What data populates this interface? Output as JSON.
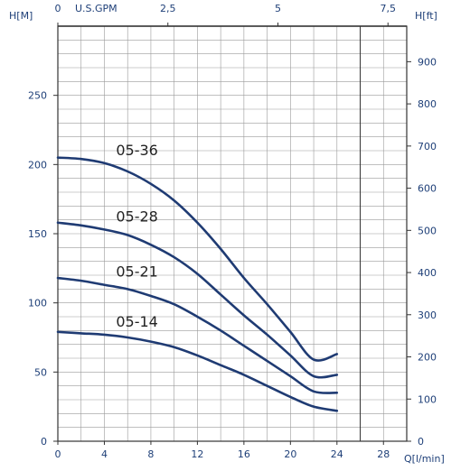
{
  "colors": {
    "curve": "#1f3b73",
    "grid": "#9a9a9a",
    "text": "#1e3f78",
    "frame": "#333333"
  },
  "chart_data": {
    "type": "line",
    "title": "",
    "xlabel": "Q[l/min]",
    "ylabel": "H[M]",
    "y2label": "H[ft]",
    "x2label": "U.S.GPM",
    "xlim": [
      0,
      30
    ],
    "ylim": [
      0,
      300
    ],
    "y2lim": [
      0,
      984.25
    ],
    "grid": true,
    "x_ticks": [
      "0",
      "4",
      "8",
      "12",
      "16",
      "20",
      "24",
      "28"
    ],
    "y_ticks": [
      "0",
      "50",
      "100",
      "150",
      "200",
      "250"
    ],
    "y2_ticks": [
      "0",
      "100",
      "200",
      "300",
      "400",
      "500",
      "600",
      "700",
      "800",
      "900"
    ],
    "x2_ticks": [
      "0",
      "2,5",
      "5",
      "7,5"
    ],
    "series": [
      {
        "name": "05-36",
        "x": [
          0,
          2,
          4,
          6,
          8,
          10,
          12,
          14,
          16,
          18,
          20,
          22,
          24
        ],
        "values": [
          205,
          204,
          201,
          195,
          186,
          174,
          158,
          139,
          118,
          99,
          79,
          59,
          63
        ]
      },
      {
        "name": "05-28",
        "x": [
          0,
          2,
          4,
          6,
          8,
          10,
          12,
          14,
          16,
          18,
          20,
          22,
          24
        ],
        "values": [
          158,
          156,
          153,
          149,
          142,
          133,
          121,
          106,
          91,
          77,
          62,
          47,
          48
        ]
      },
      {
        "name": "05-21",
        "x": [
          0,
          2,
          4,
          6,
          8,
          10,
          12,
          14,
          16,
          18,
          20,
          22,
          24
        ],
        "values": [
          118,
          116,
          113,
          110,
          105,
          99,
          90,
          80,
          69,
          58,
          47,
          36,
          35
        ]
      },
      {
        "name": "05-14",
        "x": [
          0,
          2,
          4,
          6,
          8,
          10,
          12,
          14,
          16,
          18,
          20,
          22,
          24
        ],
        "values": [
          79,
          78,
          77,
          75,
          72,
          68,
          62,
          55,
          48,
          40,
          32,
          25,
          22
        ]
      }
    ]
  }
}
